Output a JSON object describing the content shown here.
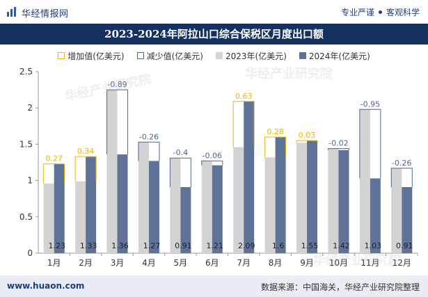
{
  "header": {
    "logo_text": "华经情报网",
    "tagline_left": "专业严谨",
    "tagline_right": "客观科学"
  },
  "watermarks": {
    "cn": "华经产业研究院",
    "en": "www.huaon.com"
  },
  "footer": {
    "website": "www.huaon.com",
    "source": "数据来源：中国海关，华经产业研究院整理"
  },
  "colors": {
    "title_bg": "#14305f",
    "bar_2023": "#d3d3d3",
    "bar_2024": "#5f7399",
    "increase": "#f0b400",
    "decrease": "#4f6591"
  },
  "chart_data": {
    "type": "bar",
    "title": "2023-2024年阿拉山口综合保税区月度出口额",
    "categories": [
      "1月",
      "2月",
      "3月",
      "4月",
      "5月",
      "6月",
      "7月",
      "8月",
      "9月",
      "10月",
      "11月",
      "12月"
    ],
    "series": [
      {
        "name": "2023年(亿美元)",
        "values": [
          0.96,
          0.99,
          2.25,
          1.53,
          1.31,
          1.27,
          1.46,
          1.32,
          1.52,
          1.44,
          1.98,
          1.17
        ]
      },
      {
        "name": "2024年(亿美元)",
        "values": [
          1.23,
          1.33,
          1.36,
          1.27,
          0.91,
          1.21,
          2.09,
          1.6,
          1.55,
          1.42,
          1.03,
          0.91
        ]
      }
    ],
    "change_labels": [
      "0.27",
      "0.34",
      "-0.89",
      "-0.26",
      "-0.4",
      "-0.06",
      "0.63",
      "0.28",
      "0.03",
      "-0.02",
      "-0.95",
      "-0.26"
    ],
    "value_labels_2024": [
      "1.23",
      "1.33",
      "1.36",
      "1.27",
      "0.91",
      "1.21",
      "2.09",
      "1.6",
      "1.55",
      "1.42",
      "1.03",
      "0.91"
    ],
    "legend": [
      "增加值(亿美元)",
      "减少值(亿美元)",
      "2023年(亿美元)",
      "2024年(亿美元)"
    ],
    "yticks": [
      "0",
      "0.5",
      "1",
      "1.5",
      "2",
      "2.5"
    ],
    "ylim": [
      0,
      2.5
    ],
    "legend_position": "top",
    "grid": false
  }
}
